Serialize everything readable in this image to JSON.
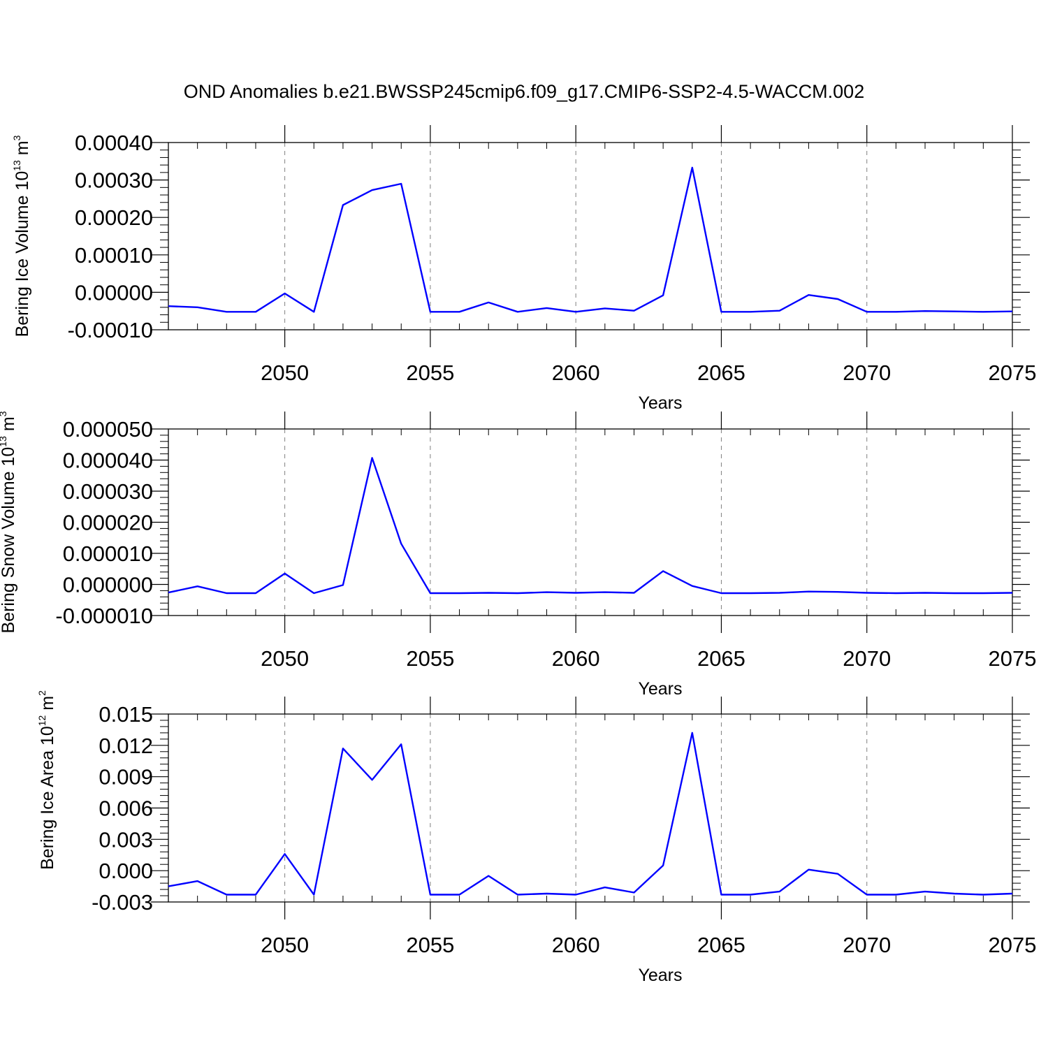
{
  "title": "OND Anomalies b.e21.BWSSP245cmip6.f09_g17.CMIP6-SSP2-4.5-WACCM.002",
  "colors": {
    "series": "#0000ff",
    "axis": "#000000",
    "grid": "#808080"
  },
  "chart_data": [
    {
      "type": "line",
      "ylabel_text": "Bering Ice Volume 10",
      "ylabel_exp": "13",
      "ylabel_unit": " m",
      "ylabel_unit_exp": "3",
      "xlabel": "Years",
      "xlim": [
        2046,
        2075
      ],
      "ylim": [
        -0.0001,
        0.0004
      ],
      "xticks": [
        2050,
        2055,
        2060,
        2065,
        2070,
        2075
      ],
      "xtick_labels": [
        "2050",
        "2055",
        "2060",
        "2065",
        "2070",
        "2075"
      ],
      "yticks": [
        -0.0001,
        0.0,
        0.0001,
        0.0002,
        0.0003,
        0.0004
      ],
      "ytick_labels": [
        "-0.00010",
        "0.00000",
        "0.00010",
        "0.00020",
        "0.00030",
        "0.00040"
      ],
      "x": [
        2046,
        2047,
        2048,
        2049,
        2050,
        2051,
        2052,
        2053,
        2054,
        2055,
        2056,
        2057,
        2058,
        2059,
        2060,
        2061,
        2062,
        2063,
        2064,
        2065,
        2066,
        2067,
        2068,
        2069,
        2070,
        2071,
        2072,
        2073,
        2074,
        2075
      ],
      "values": [
        -3.7e-05,
        -4e-05,
        -5.2e-05,
        -5.2e-05,
        -3e-06,
        -5.2e-05,
        0.000233,
        0.000273,
        0.00029,
        -5.2e-05,
        -5.2e-05,
        -2.7e-05,
        -5.2e-05,
        -4.2e-05,
        -5.2e-05,
        -4.3e-05,
        -4.9e-05,
        -8e-06,
        0.000333,
        -5.2e-05,
        -5.2e-05,
        -4.9e-05,
        -7e-06,
        -1.8e-05,
        -5.2e-05,
        -5.2e-05,
        -5e-05,
        -5.1e-05,
        -5.2e-05,
        -5.1e-05
      ]
    },
    {
      "type": "line",
      "ylabel_text": "Bering Snow Volume 10",
      "ylabel_exp": "13",
      "ylabel_unit": " m",
      "ylabel_unit_exp": "3",
      "xlabel": "Years",
      "xlim": [
        2046,
        2075
      ],
      "ylim": [
        -1e-05,
        5e-05
      ],
      "xticks": [
        2050,
        2055,
        2060,
        2065,
        2070,
        2075
      ],
      "xtick_labels": [
        "2050",
        "2055",
        "2060",
        "2065",
        "2070",
        "2075"
      ],
      "yticks": [
        -1e-05,
        0.0,
        1e-05,
        2e-05,
        3e-05,
        4e-05,
        5e-05
      ],
      "ytick_labels": [
        "-0.000010",
        "0.000000",
        "0.000010",
        "0.000020",
        "0.000030",
        "0.000040",
        "0.000050"
      ],
      "x": [
        2046,
        2047,
        2048,
        2049,
        2050,
        2051,
        2052,
        2053,
        2054,
        2055,
        2056,
        2057,
        2058,
        2059,
        2060,
        2061,
        2062,
        2063,
        2064,
        2065,
        2066,
        2067,
        2068,
        2069,
        2070,
        2071,
        2072,
        2073,
        2074,
        2075
      ],
      "values": [
        -2.6e-06,
        -6e-07,
        -2.8e-06,
        -2.8e-06,
        3.5e-06,
        -2.8e-06,
        -2e-07,
        4.07e-05,
        1.31e-05,
        -2.8e-06,
        -2.8e-06,
        -2.7e-06,
        -2.8e-06,
        -2.5e-06,
        -2.7e-06,
        -2.5e-06,
        -2.7e-06,
        4.3e-06,
        -5e-07,
        -2.8e-06,
        -2.8e-06,
        -2.7e-06,
        -2.3e-06,
        -2.4e-06,
        -2.7e-06,
        -2.8e-06,
        -2.7e-06,
        -2.8e-06,
        -2.8e-06,
        -2.7e-06
      ]
    },
    {
      "type": "line",
      "ylabel_text": "Bering Ice Area 10",
      "ylabel_exp": "12",
      "ylabel_unit": " m",
      "ylabel_unit_exp": "2",
      "xlabel": "Years",
      "xlim": [
        2046,
        2075
      ],
      "ylim": [
        -0.003,
        0.015
      ],
      "xticks": [
        2050,
        2055,
        2060,
        2065,
        2070,
        2075
      ],
      "xtick_labels": [
        "2050",
        "2055",
        "2060",
        "2065",
        "2070",
        "2075"
      ],
      "yticks": [
        -0.003,
        0.0,
        0.003,
        0.006,
        0.009,
        0.012,
        0.015
      ],
      "ytick_labels": [
        "-0.003",
        "0.000",
        "0.003",
        "0.006",
        "0.009",
        "0.012",
        "0.015"
      ],
      "x": [
        2046,
        2047,
        2048,
        2049,
        2050,
        2051,
        2052,
        2053,
        2054,
        2055,
        2056,
        2057,
        2058,
        2059,
        2060,
        2061,
        2062,
        2063,
        2064,
        2065,
        2066,
        2067,
        2068,
        2069,
        2070,
        2071,
        2072,
        2073,
        2074,
        2075
      ],
      "values": [
        -0.0015,
        -0.001,
        -0.0023,
        -0.0023,
        0.0016,
        -0.0023,
        0.0117,
        0.0087,
        0.0121,
        -0.0023,
        -0.0023,
        -0.0005,
        -0.0023,
        -0.0022,
        -0.0023,
        -0.0016,
        -0.0021,
        0.0005,
        0.0132,
        -0.0023,
        -0.0023,
        -0.002,
        0.0001,
        -0.0003,
        -0.0023,
        -0.0023,
        -0.002,
        -0.0022,
        -0.0023,
        -0.0022
      ]
    }
  ]
}
